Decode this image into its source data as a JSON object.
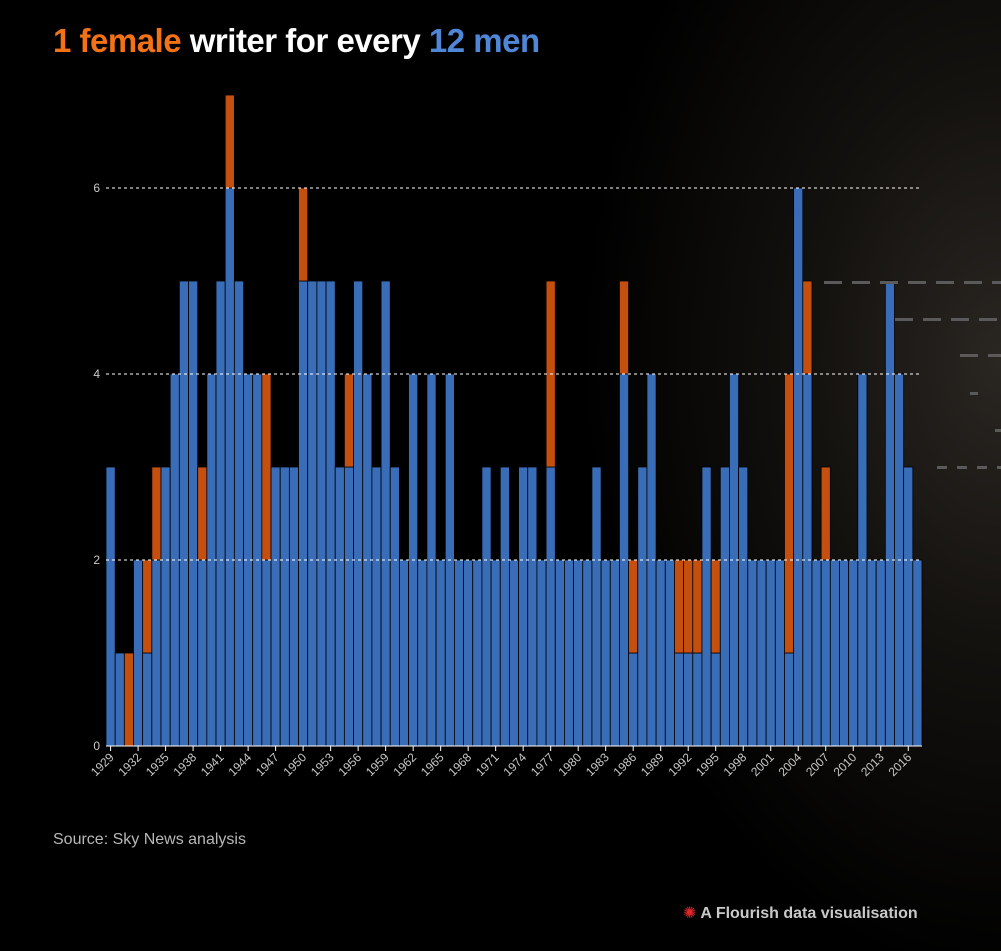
{
  "title": {
    "part1": "1 female",
    "part2": " writer for every ",
    "part3": "12 men"
  },
  "source": "Source: Sky News analysis",
  "credit": "A Flourish data visualisation",
  "colors": {
    "men": "#3a6db8",
    "women": "#c54f0f",
    "female_title": "#f47216",
    "men_title": "#4f86d6",
    "grid": "#ffffff"
  },
  "chart_data": {
    "type": "bar",
    "stacked": true,
    "categories": [
      1929,
      1930,
      1931,
      1932,
      1933,
      1934,
      1935,
      1936,
      1937,
      1938,
      1939,
      1940,
      1941,
      1942,
      1943,
      1944,
      1945,
      1946,
      1947,
      1948,
      1949,
      1950,
      1951,
      1952,
      1953,
      1954,
      1955,
      1956,
      1957,
      1958,
      1959,
      1960,
      1961,
      1962,
      1963,
      1964,
      1965,
      1966,
      1967,
      1968,
      1969,
      1970,
      1971,
      1972,
      1973,
      1974,
      1975,
      1976,
      1977,
      1978,
      1979,
      1980,
      1981,
      1982,
      1983,
      1984,
      1985,
      1986,
      1987,
      1988,
      1989,
      1990,
      1991,
      1992,
      1993,
      1994,
      1995,
      1996,
      1997,
      1998,
      1999,
      2000,
      2001,
      2002,
      2003,
      2004,
      2005,
      2006,
      2007,
      2008,
      2009,
      2010,
      2011,
      2012,
      2013,
      2014,
      2015,
      2016,
      2017
    ],
    "tick_labels": [
      "1929",
      "1932",
      "1935",
      "1938",
      "1941",
      "1944",
      "1947",
      "1950",
      "1953",
      "1956",
      "1959",
      "1962",
      "1965",
      "1968",
      "1971",
      "1974",
      "1977",
      "1980",
      "1983",
      "1986",
      "1989",
      "1992",
      "1995",
      "1998",
      "2001",
      "2004",
      "2007",
      "2010",
      "2013",
      "2016"
    ],
    "series": [
      {
        "key": "men",
        "values": [
          3,
          1,
          0,
          2,
          1,
          2,
          3,
          4,
          5,
          5,
          2,
          4,
          5,
          6,
          5,
          4,
          4,
          2,
          3,
          3,
          3,
          5,
          5,
          5,
          5,
          3,
          3,
          5,
          4,
          3,
          5,
          3,
          2,
          4,
          2,
          4,
          2,
          4,
          2,
          2,
          2,
          3,
          2,
          3,
          2,
          3,
          3,
          2,
          3,
          2,
          2,
          2,
          2,
          3,
          2,
          2,
          4,
          1,
          3,
          4,
          2,
          2,
          1,
          1,
          1,
          3,
          1,
          3,
          4,
          3,
          2,
          2,
          2,
          2,
          1,
          6,
          4,
          2,
          2,
          2,
          2,
          2,
          4,
          2,
          2,
          5,
          4,
          3,
          2
        ]
      },
      {
        "key": "women",
        "values": [
          0,
          0,
          1,
          0,
          1,
          1,
          0,
          0,
          0,
          0,
          1,
          0,
          0,
          1,
          0,
          0,
          0,
          2,
          0,
          0,
          0,
          1,
          0,
          0,
          0,
          0,
          1,
          0,
          0,
          0,
          0,
          0,
          0,
          0,
          0,
          0,
          0,
          0,
          0,
          0,
          0,
          0,
          0,
          0,
          0,
          0,
          0,
          0,
          2,
          0,
          0,
          0,
          0,
          0,
          0,
          0,
          1,
          1,
          0,
          0,
          0,
          0,
          1,
          1,
          1,
          0,
          1,
          0,
          0,
          0,
          0,
          0,
          0,
          0,
          3,
          0,
          1,
          0,
          1,
          0,
          0,
          0,
          0,
          0,
          0,
          0,
          0,
          0,
          0
        ]
      }
    ],
    "yticks": [
      0,
      2,
      4,
      6
    ],
    "ylim": [
      0,
      7
    ],
    "grid": "dashed horizontal"
  }
}
